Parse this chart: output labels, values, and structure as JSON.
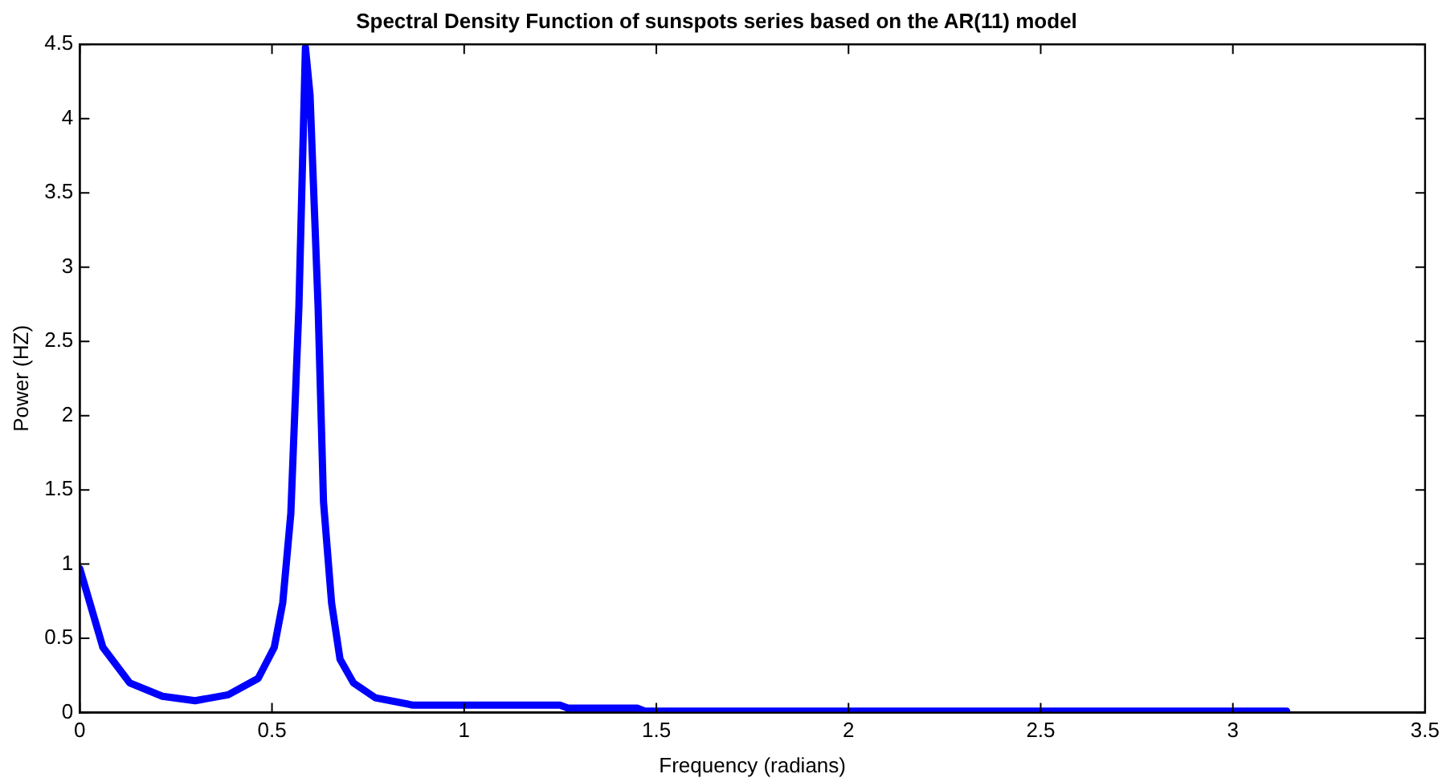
{
  "chart_data": {
    "type": "line",
    "title": "Spectral Density Function of sunspots series based on the AR(11) model",
    "xlabel": "Frequency (radians)",
    "ylabel": "Power (HZ)",
    "x": [
      0,
      0.06,
      0.13,
      0.215,
      0.3,
      0.386,
      0.464,
      0.506,
      0.528,
      0.549,
      0.57,
      0.587,
      0.599,
      0.62,
      0.634,
      0.655,
      0.677,
      0.712,
      0.769,
      0.868,
      1.0,
      1.25,
      1.27,
      1.45,
      1.47,
      2.0,
      2.5,
      3.14
    ],
    "series": [
      {
        "color": "#0000ff",
        "values": [
          0.97,
          0.44,
          0.2,
          0.11,
          0.08,
          0.12,
          0.23,
          0.44,
          0.74,
          1.34,
          2.73,
          4.48,
          4.16,
          2.73,
          1.42,
          0.74,
          0.36,
          0.2,
          0.1,
          0.05,
          0.05,
          0.05,
          0.03,
          0.03,
          0.01,
          0.01,
          0.01,
          0.01
        ]
      }
    ],
    "xlim": [
      0,
      3.5
    ],
    "xticks": [
      0,
      0.5,
      1,
      1.5,
      2,
      2.5,
      3,
      3.5
    ],
    "ylim": [
      0,
      4.5
    ],
    "yticks": [
      0,
      0.5,
      1,
      1.5,
      2,
      2.5,
      3,
      3.5,
      4,
      4.5
    ],
    "grid": false,
    "legend": false,
    "marker": "none",
    "line_style": "solid"
  }
}
